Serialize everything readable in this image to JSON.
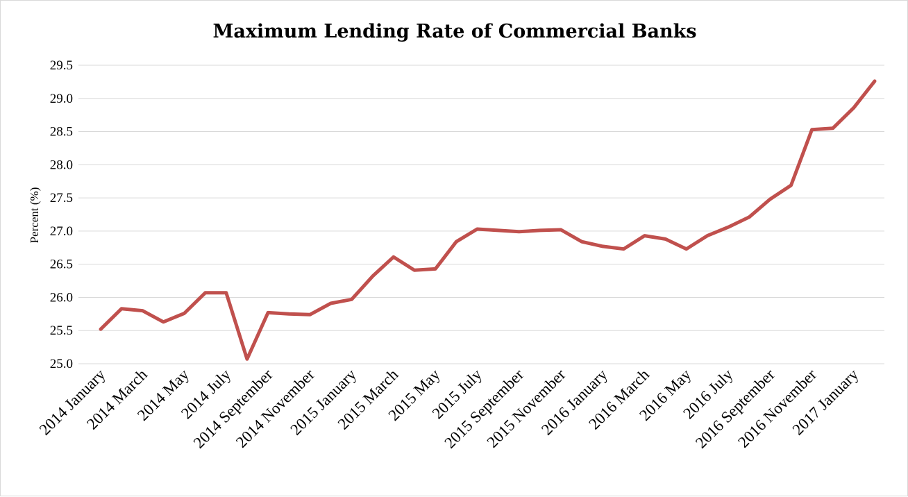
{
  "chart_data": {
    "type": "line",
    "title": "Maximum Lending Rate of Commercial Banks",
    "xlabel": "",
    "ylabel": "Percent (%)",
    "ylim": [
      25.0,
      29.5
    ],
    "y_ticks": [
      "25.0",
      "25.5",
      "26.0",
      "26.5",
      "27.0",
      "27.5",
      "28.0",
      "28.5",
      "29.0",
      "29.5"
    ],
    "grid": true,
    "legend": "none",
    "x": [
      "2014 January",
      "2014 February",
      "2014 March",
      "2014 April",
      "2014 May",
      "2014 June",
      "2014 July",
      "2014 August",
      "2014 September",
      "2014 October",
      "2014 November",
      "2014 December",
      "2015 January",
      "2015 February",
      "2015 March",
      "2015 April",
      "2015 May",
      "2015 June",
      "2015 July",
      "2015 August",
      "2015 September",
      "2015 October",
      "2015 November",
      "2015 December",
      "2016 January",
      "2016 February",
      "2016 March",
      "2016 April",
      "2016 May",
      "2016 June",
      "2016 July",
      "2016 August",
      "2016 September",
      "2016 October",
      "2016 November",
      "2016 December",
      "2017 January",
      "2017 February"
    ],
    "x_tick_labels": [
      "2014 January",
      "2014 March",
      "2014 May",
      "2014 July",
      "2014 September",
      "2014 November",
      "2015 January",
      "2015 March",
      "2015 May",
      "2015 July",
      "2015 September",
      "2015 November",
      "2016 January",
      "2016 March",
      "2016 May",
      "2016 July",
      "2016 September",
      "2016 November",
      "2017 January"
    ],
    "series": [
      {
        "name": "",
        "color": "#c0504d",
        "values": [
          25.52,
          25.83,
          25.8,
          25.63,
          25.76,
          26.07,
          26.07,
          25.07,
          25.77,
          25.75,
          25.74,
          25.91,
          25.97,
          26.32,
          26.61,
          26.41,
          26.43,
          26.84,
          27.03,
          27.01,
          26.99,
          27.01,
          27.02,
          26.84,
          26.77,
          26.73,
          26.93,
          26.88,
          26.73,
          26.93,
          27.06,
          27.21,
          27.48,
          27.69,
          28.53,
          28.55,
          28.86,
          29.26
        ]
      }
    ]
  }
}
